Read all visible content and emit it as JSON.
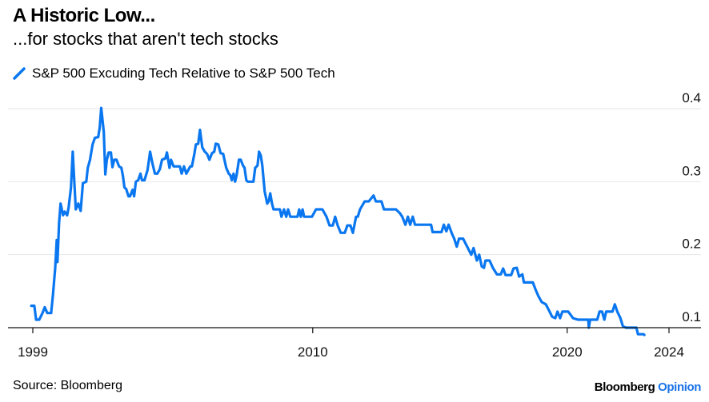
{
  "header": {
    "title": "A Historic Low...",
    "subtitle": "...for stocks that aren't tech stocks"
  },
  "legend": {
    "label": "S&P 500 Excuding Tech Relative to S&P 500 Tech",
    "color": "#0a77f0"
  },
  "footer": {
    "source": "Source: Bloomberg",
    "brand_main": "Bloomberg",
    "brand_accent": "Opinion",
    "brand_accent_color": "#1a73e8"
  },
  "chart_data": {
    "type": "line",
    "title": "A Historic Low...",
    "subtitle": "...for stocks that aren't tech stocks",
    "xlabel": "",
    "ylabel": "",
    "x_ticks": [
      {
        "label": "1999",
        "value": 1999
      },
      {
        "label": "2010",
        "value": 2010
      },
      {
        "label": "2020",
        "value": 2020
      },
      {
        "label": "2024",
        "value": 2024
      }
    ],
    "y_ticks": [
      {
        "label": "0.1",
        "value": 0.1
      },
      {
        "label": "0.2",
        "value": 0.2
      },
      {
        "label": "0.3",
        "value": 0.3
      },
      {
        "label": "0.4",
        "value": 0.4
      }
    ],
    "xlim": [
      1998.5,
      2025.5
    ],
    "ylim": [
      0.1,
      0.41
    ],
    "grid": true,
    "legend_position": "top-left",
    "y_axis_side": "right",
    "series": [
      {
        "name": "S&P 500 Excuding Tech Relative to S&P 500 Tech",
        "color": "#0a77f0",
        "points": [
          [
            1998.94,
            0.13
          ],
          [
            1999.06,
            0.13
          ],
          [
            1999.13,
            0.111
          ],
          [
            1999.25,
            0.111
          ],
          [
            1999.38,
            0.12
          ],
          [
            1999.47,
            0.128
          ],
          [
            1999.57,
            0.12
          ],
          [
            1999.66,
            0.12
          ],
          [
            1999.72,
            0.12
          ],
          [
            1999.79,
            0.144
          ],
          [
            1999.88,
            0.182
          ],
          [
            1999.94,
            0.22
          ],
          [
            1999.97,
            0.19
          ],
          [
            2000.03,
            0.243
          ],
          [
            2000.09,
            0.27
          ],
          [
            2000.19,
            0.254
          ],
          [
            2000.25,
            0.259
          ],
          [
            2000.35,
            0.254
          ],
          [
            2000.41,
            0.265
          ],
          [
            2000.5,
            0.292
          ],
          [
            2000.57,
            0.341
          ],
          [
            2000.69,
            0.262
          ],
          [
            2000.79,
            0.27
          ],
          [
            2000.88,
            0.26
          ],
          [
            2000.97,
            0.298
          ],
          [
            2001.1,
            0.3
          ],
          [
            2001.16,
            0.319
          ],
          [
            2001.25,
            0.33
          ],
          [
            2001.35,
            0.351
          ],
          [
            2001.44,
            0.36
          ],
          [
            2001.57,
            0.361
          ],
          [
            2001.63,
            0.374
          ],
          [
            2001.69,
            0.401
          ],
          [
            2001.79,
            0.368
          ],
          [
            2001.85,
            0.31
          ],
          [
            2001.91,
            0.33
          ],
          [
            2001.98,
            0.34
          ],
          [
            2002.07,
            0.34
          ],
          [
            2002.13,
            0.32
          ],
          [
            2002.2,
            0.33
          ],
          [
            2002.29,
            0.33
          ],
          [
            2002.39,
            0.321
          ],
          [
            2002.48,
            0.319
          ],
          [
            2002.54,
            0.308
          ],
          [
            2002.6,
            0.292
          ],
          [
            2002.67,
            0.29
          ],
          [
            2002.76,
            0.28
          ],
          [
            2002.82,
            0.28
          ],
          [
            2002.92,
            0.289
          ],
          [
            2002.98,
            0.28
          ],
          [
            2003.05,
            0.3
          ],
          [
            2003.14,
            0.302
          ],
          [
            2003.23,
            0.311
          ],
          [
            2003.29,
            0.302
          ],
          [
            2003.39,
            0.302
          ],
          [
            2003.51,
            0.316
          ],
          [
            2003.61,
            0.341
          ],
          [
            2003.7,
            0.325
          ],
          [
            2003.8,
            0.311
          ],
          [
            2003.89,
            0.311
          ],
          [
            2003.99,
            0.317
          ],
          [
            2004.08,
            0.33
          ],
          [
            2004.21,
            0.332
          ],
          [
            2004.27,
            0.34
          ],
          [
            2004.37,
            0.319
          ],
          [
            2004.43,
            0.33
          ],
          [
            2004.53,
            0.321
          ],
          [
            2004.66,
            0.321
          ],
          [
            2004.78,
            0.321
          ],
          [
            2004.85,
            0.311
          ],
          [
            2004.94,
            0.321
          ],
          [
            2005.03,
            0.311
          ],
          [
            2005.19,
            0.321
          ],
          [
            2005.25,
            0.321
          ],
          [
            2005.35,
            0.338
          ],
          [
            2005.41,
            0.351
          ],
          [
            2005.5,
            0.352
          ],
          [
            2005.57,
            0.371
          ],
          [
            2005.66,
            0.347
          ],
          [
            2005.76,
            0.341
          ],
          [
            2005.85,
            0.338
          ],
          [
            2005.94,
            0.33
          ],
          [
            2006.04,
            0.339
          ],
          [
            2006.13,
            0.341
          ],
          [
            2006.19,
            0.352
          ],
          [
            2006.29,
            0.351
          ],
          [
            2006.38,
            0.339
          ],
          [
            2006.48,
            0.338
          ],
          [
            2006.6,
            0.319
          ],
          [
            2006.7,
            0.311
          ],
          [
            2006.76,
            0.309
          ],
          [
            2006.82,
            0.302
          ],
          [
            2006.89,
            0.311
          ],
          [
            2006.95,
            0.3
          ],
          [
            2007.01,
            0.309
          ],
          [
            2007.1,
            0.33
          ],
          [
            2007.17,
            0.33
          ],
          [
            2007.26,
            0.322
          ],
          [
            2007.32,
            0.319
          ],
          [
            2007.39,
            0.302
          ],
          [
            2007.45,
            0.3
          ],
          [
            2007.58,
            0.3
          ],
          [
            2007.67,
            0.3
          ],
          [
            2007.74,
            0.319
          ],
          [
            2007.83,
            0.322
          ],
          [
            2007.89,
            0.341
          ],
          [
            2007.96,
            0.336
          ],
          [
            2008.02,
            0.322
          ],
          [
            2008.11,
            0.287
          ],
          [
            2008.21,
            0.27
          ],
          [
            2008.27,
            0.273
          ],
          [
            2008.33,
            0.284
          ],
          [
            2008.4,
            0.27
          ],
          [
            2008.46,
            0.262
          ],
          [
            2008.71,
            0.262
          ],
          [
            2008.77,
            0.252
          ],
          [
            2008.87,
            0.262
          ],
          [
            2008.96,
            0.252
          ],
          [
            2009.03,
            0.262
          ],
          [
            2009.12,
            0.252
          ],
          [
            2009.4,
            0.252
          ],
          [
            2009.47,
            0.262
          ],
          [
            2009.53,
            0.252
          ],
          [
            2009.6,
            0.262
          ],
          [
            2009.66,
            0.252
          ],
          [
            2009.97,
            0.252
          ],
          [
            2010.13,
            0.262
          ],
          [
            2010.38,
            0.262
          ],
          [
            2010.54,
            0.252
          ],
          [
            2010.66,
            0.24
          ],
          [
            2010.79,
            0.24
          ],
          [
            2010.88,
            0.252
          ],
          [
            2010.98,
            0.24
          ],
          [
            2011.1,
            0.23
          ],
          [
            2011.26,
            0.23
          ],
          [
            2011.36,
            0.24
          ],
          [
            2011.48,
            0.24
          ],
          [
            2011.58,
            0.23
          ],
          [
            2011.7,
            0.252
          ],
          [
            2011.77,
            0.252
          ],
          [
            2011.86,
            0.262
          ],
          [
            2012.04,
            0.273
          ],
          [
            2012.2,
            0.273
          ],
          [
            2012.39,
            0.281
          ],
          [
            2012.48,
            0.273
          ],
          [
            2012.7,
            0.273
          ],
          [
            2012.8,
            0.262
          ],
          [
            2013.27,
            0.262
          ],
          [
            2013.42,
            0.257
          ],
          [
            2013.52,
            0.252
          ],
          [
            2013.64,
            0.241
          ],
          [
            2013.74,
            0.252
          ],
          [
            2013.83,
            0.241
          ],
          [
            2013.93,
            0.252
          ],
          [
            2014.02,
            0.241
          ],
          [
            2014.65,
            0.241
          ],
          [
            2014.71,
            0.231
          ],
          [
            2015.06,
            0.231
          ],
          [
            2015.15,
            0.241
          ],
          [
            2015.25,
            0.232
          ],
          [
            2015.34,
            0.241
          ],
          [
            2015.47,
            0.229
          ],
          [
            2015.56,
            0.222
          ],
          [
            2015.66,
            0.211
          ],
          [
            2015.75,
            0.222
          ],
          [
            2015.91,
            0.222
          ],
          [
            2016.07,
            0.211
          ],
          [
            2016.23,
            0.2
          ],
          [
            2016.32,
            0.209
          ],
          [
            2016.45,
            0.192
          ],
          [
            2016.54,
            0.2
          ],
          [
            2016.64,
            0.184
          ],
          [
            2016.73,
            0.182
          ],
          [
            2016.79,
            0.192
          ],
          [
            2016.95,
            0.192
          ],
          [
            2017.08,
            0.182
          ],
          [
            2017.24,
            0.173
          ],
          [
            2017.39,
            0.173
          ],
          [
            2017.48,
            0.181
          ],
          [
            2017.58,
            0.172
          ],
          [
            2017.8,
            0.172
          ],
          [
            2017.89,
            0.181
          ],
          [
            2018.02,
            0.182
          ],
          [
            2018.11,
            0.17
          ],
          [
            2018.24,
            0.173
          ],
          [
            2018.3,
            0.162
          ],
          [
            2018.36,
            0.162
          ],
          [
            2018.65,
            0.162
          ],
          [
            2018.77,
            0.151
          ],
          [
            2018.87,
            0.143
          ],
          [
            2019.0,
            0.135
          ],
          [
            2019.16,
            0.132
          ],
          [
            2019.28,
            0.124
          ],
          [
            2019.41,
            0.115
          ],
          [
            2019.53,
            0.113
          ],
          [
            2019.62,
            0.122
          ],
          [
            2019.72,
            0.113
          ],
          [
            2019.81,
            0.122
          ],
          [
            2020.04,
            0.122
          ],
          [
            2020.23,
            0.113
          ],
          [
            2020.42,
            0.111
          ],
          [
            2020.83,
            0.111
          ],
          [
            2020.85,
            0.1
          ],
          [
            2020.9,
            0.111
          ],
          [
            2021.18,
            0.111
          ],
          [
            2021.27,
            0.122
          ],
          [
            2021.37,
            0.122
          ],
          [
            2021.46,
            0.111
          ],
          [
            2021.53,
            0.122
          ],
          [
            2021.78,
            0.122
          ],
          [
            2021.87,
            0.132
          ],
          [
            2021.97,
            0.122
          ],
          [
            2022.09,
            0.113
          ],
          [
            2022.19,
            0.102
          ],
          [
            2022.31,
            0.1
          ],
          [
            2022.72,
            0.1
          ],
          [
            2022.78,
            0.091
          ],
          [
            2023.0,
            0.091
          ],
          [
            2023.03,
            0.09
          ]
        ]
      }
    ]
  }
}
